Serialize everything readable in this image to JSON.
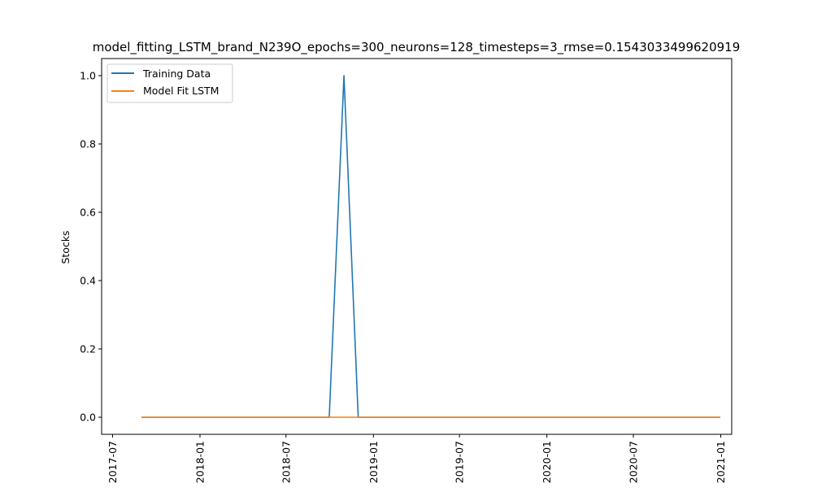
{
  "chart_data": {
    "type": "line",
    "title": "model_fitting_LSTM_brand_N239O_epochs=300_neurons=128_timesteps=3_rmse=0.1543033499620919",
    "xlabel": "",
    "ylabel": "Stocks",
    "xlim": [
      "2017-06-08",
      "2021-01-24"
    ],
    "ylim": [
      -0.05,
      1.05
    ],
    "x_ticks": [
      "2017-07",
      "2018-01",
      "2018-07",
      "2019-01",
      "2019-07",
      "2020-01",
      "2020-07",
      "2021-01"
    ],
    "y_ticks": [
      "0.0",
      "0.2",
      "0.4",
      "0.6",
      "0.8",
      "1.0"
    ],
    "grid": false,
    "legend_position": "upper left",
    "series": [
      {
        "name": "Training Data",
        "color": "#1f77b4",
        "x": [
          "2017-08-31",
          "2018-09-30",
          "2018-10-31",
          "2018-11-30",
          "2020-12-31"
        ],
        "y": [
          0,
          0,
          1,
          0,
          0
        ]
      },
      {
        "name": "Model Fit LSTM",
        "color": "#ff7f0e",
        "x": [
          "2017-08-31",
          "2020-12-31"
        ],
        "y": [
          0,
          0
        ]
      }
    ]
  }
}
